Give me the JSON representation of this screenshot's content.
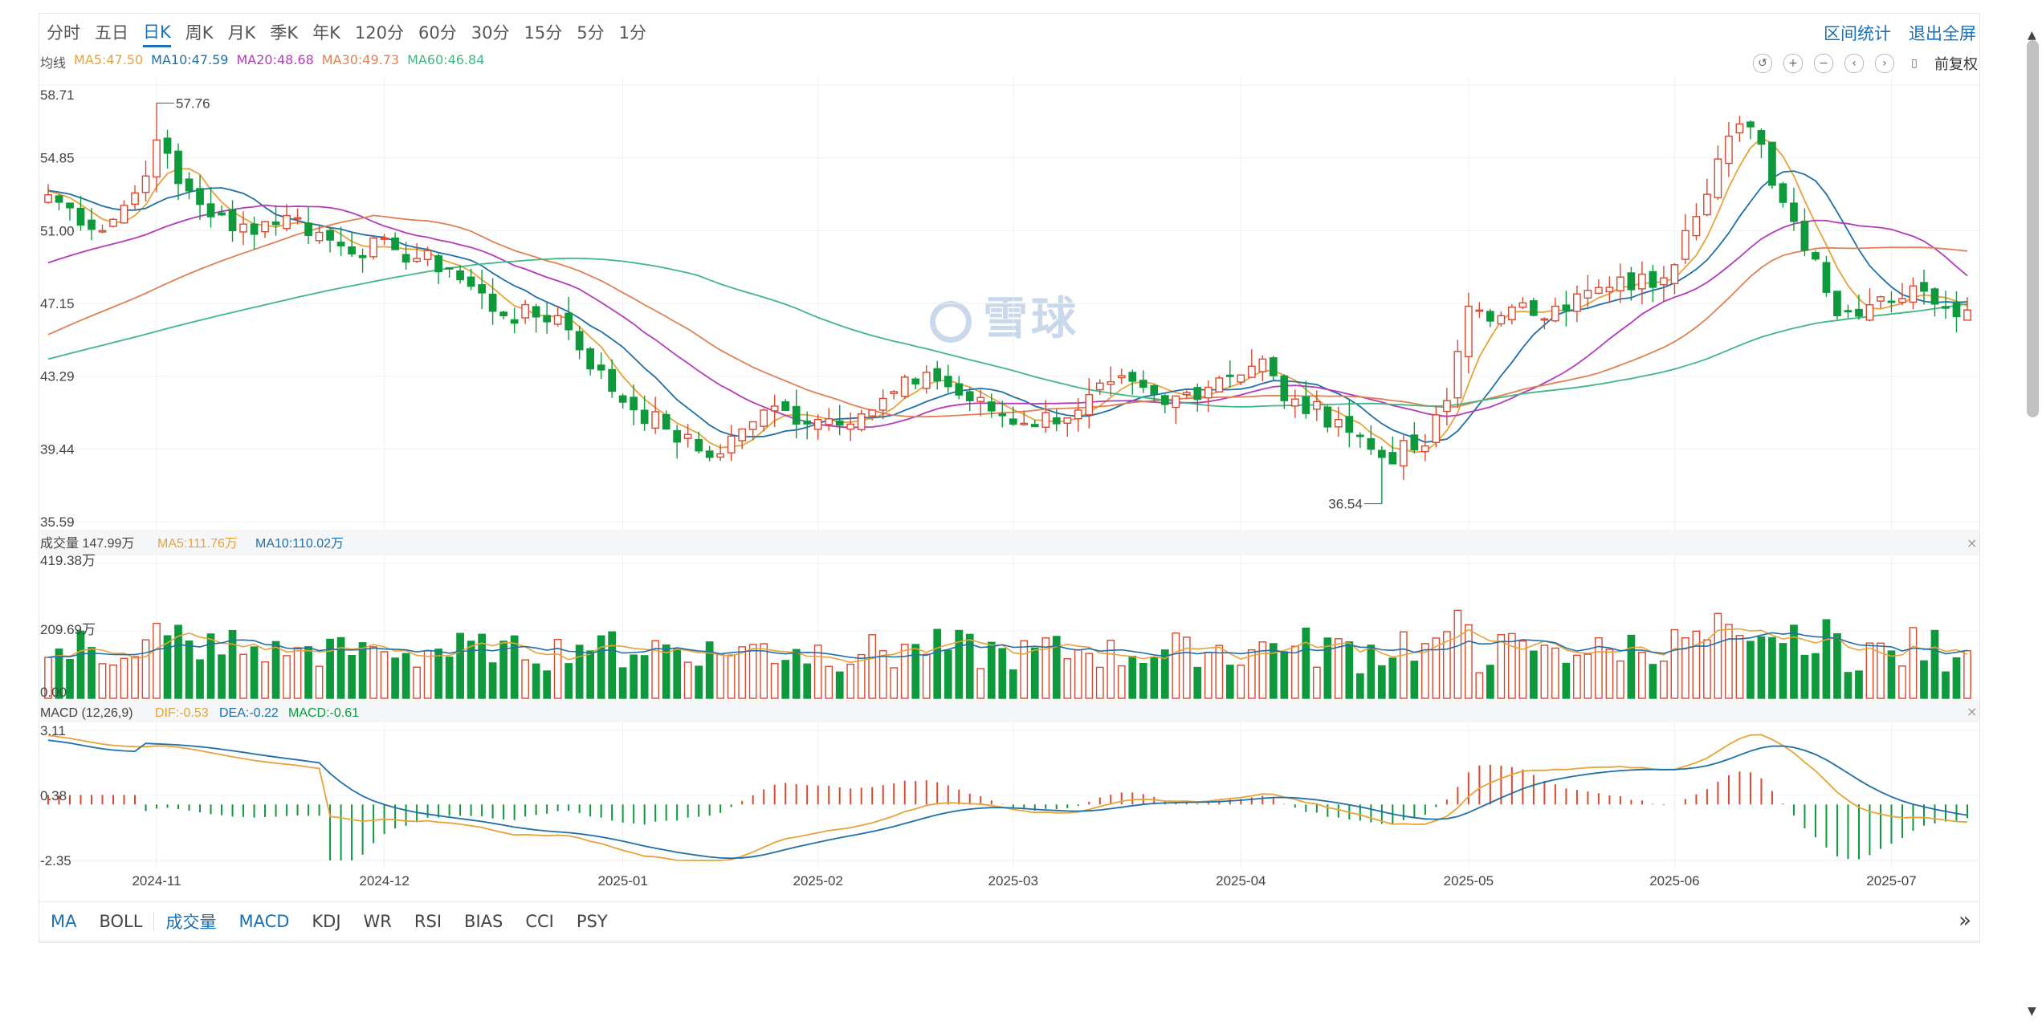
{
  "toolbar": {
    "periods": [
      "分时",
      "五日",
      "日K",
      "周K",
      "月K",
      "季K",
      "年K",
      "120分",
      "60分",
      "30分",
      "15分",
      "5分",
      "1分"
    ],
    "active_period": "日K",
    "range_stats": "区间统计",
    "exit_fullscreen": "退出全屏",
    "adjust": "前复权"
  },
  "legend_ma": {
    "label": "均线",
    "ma5": "MA5:47.50",
    "ma10": "MA10:47.59",
    "ma20": "MA20:48.68",
    "ma30": "MA30:49.73",
    "ma60": "MA60:46.84"
  },
  "legend_vol": {
    "label": "成交量 147.99万",
    "ma5": "MA5:111.76万",
    "ma10": "MA10:110.02万"
  },
  "legend_macd": {
    "label": "MACD (12,26,9)",
    "dif": "DIF:-0.53",
    "dea": "DEA:-0.22",
    "macd": "MACD:-0.61"
  },
  "watermark": "雪球",
  "colors": {
    "up": "#d84a2f",
    "down": "#0e9a3c",
    "ma5": "#e8a23a",
    "ma10": "#1f6fa8",
    "ma20": "#b43bb8",
    "ma30": "#e08054",
    "ma60": "#3fb884",
    "accent": "#1a6fb5"
  },
  "bottom_tabs": [
    "MA",
    "BOLL",
    "成交量",
    "MACD",
    "KDJ",
    "WR",
    "RSI",
    "BIAS",
    "CCI",
    "PSY"
  ],
  "bottom_tabs_active": [
    "MA",
    "成交量",
    "MACD"
  ],
  "chart_data": {
    "type": "candlestick",
    "price_axis": {
      "labels": [
        "58.71",
        "54.85",
        "51.00",
        "47.15",
        "43.29",
        "39.44",
        "35.59"
      ],
      "min": 35.59,
      "max": 58.71
    },
    "high_annotation": {
      "label": "57.76",
      "value": 57.76,
      "date": "2024-11-01"
    },
    "low_annotation": {
      "label": "36.54",
      "value": 36.54,
      "date": "2025-04-21"
    },
    "volume_axis": {
      "labels": [
        "419.38万",
        "209.69万",
        "0.00"
      ],
      "max": 419.38
    },
    "macd_axis": {
      "labels": [
        "3.11",
        "0.38",
        "-2.35"
      ],
      "min": -2.35,
      "max": 3.11
    },
    "x_ticks": [
      {
        "label": "2024-11",
        "date": "2024-11-01"
      },
      {
        "label": "2024-12",
        "date": "2024-12-02"
      },
      {
        "label": "2025-01",
        "date": "2025-01-02"
      },
      {
        "label": "2025-02",
        "date": "2025-02-05"
      },
      {
        "label": "2025-03",
        "date": "2025-03-03"
      },
      {
        "label": "2025-04",
        "date": "2025-04-01"
      },
      {
        "label": "2025-05",
        "date": "2025-05-06"
      },
      {
        "label": "2025-06",
        "date": "2025-06-03"
      },
      {
        "label": "2025-07",
        "date": "2025-07-01"
      }
    ],
    "close_anchors": [
      [
        "2024-10-18",
        52.9
      ],
      [
        "2024-10-25",
        51.0
      ],
      [
        "2024-10-30",
        53.0
      ],
      [
        "2024-11-01",
        55.8
      ],
      [
        "2024-11-05",
        53.5
      ],
      [
        "2024-11-12",
        51.0
      ],
      [
        "2024-11-19",
        51.8
      ],
      [
        "2024-11-26",
        50.2
      ],
      [
        "2024-12-03",
        50.0
      ],
      [
        "2024-12-10",
        49.0
      ],
      [
        "2024-12-17",
        46.5
      ],
      [
        "2024-12-24",
        46.5
      ],
      [
        "2024-12-31",
        42.5
      ],
      [
        "2025-01-08",
        40.5
      ],
      [
        "2025-01-14",
        39.0
      ],
      [
        "2025-01-17",
        40.5
      ],
      [
        "2025-01-21",
        41.5
      ],
      [
        "2025-02-05",
        41.0
      ],
      [
        "2025-02-12",
        41.5
      ],
      [
        "2025-02-19",
        43.5
      ],
      [
        "2025-02-25",
        42.0
      ],
      [
        "2025-03-04",
        40.8
      ],
      [
        "2025-03-11",
        41.5
      ],
      [
        "2025-03-14",
        43.0
      ],
      [
        "2025-03-21",
        41.8
      ],
      [
        "2025-03-28",
        43.2
      ],
      [
        "2025-04-03",
        44.2
      ],
      [
        "2025-04-08",
        42.0
      ],
      [
        "2025-04-15",
        41.0
      ],
      [
        "2025-04-21",
        39.0
      ],
      [
        "2025-04-25",
        39.6
      ],
      [
        "2025-04-29",
        42.0
      ],
      [
        "2025-05-06",
        47.0
      ],
      [
        "2025-05-09",
        46.5
      ],
      [
        "2025-05-16",
        47.0
      ],
      [
        "2025-05-23",
        48.0
      ],
      [
        "2025-05-30",
        48.5
      ],
      [
        "2025-06-04",
        51.0
      ],
      [
        "2025-06-10",
        56.0
      ],
      [
        "2025-06-12",
        56.5
      ],
      [
        "2025-06-17",
        52.5
      ],
      [
        "2025-06-20",
        49.5
      ],
      [
        "2025-06-24",
        46.5
      ],
      [
        "2025-06-30",
        47.5
      ],
      [
        "2025-07-04",
        47.8
      ],
      [
        "2025-07-10",
        46.8
      ]
    ],
    "ma_last": {
      "MA5": 47.5,
      "MA10": 47.59,
      "MA20": 48.68,
      "MA30": 49.73,
      "MA60": 46.84
    },
    "volume_last": 147.99,
    "volume_ma_last": {
      "MA5": 111.76,
      "MA10": 110.02
    },
    "macd_last": {
      "DIF": -0.53,
      "DEA": -0.22,
      "MACD": -0.61
    },
    "grid": true
  }
}
